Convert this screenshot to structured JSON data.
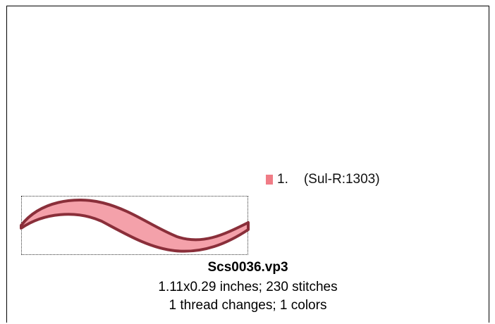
{
  "legend": {
    "items": [
      {
        "number": "1.",
        "thread": "(Sul-R:1303)",
        "color": "#f07c86"
      }
    ]
  },
  "design": {
    "fill_color": "#f4a1aa",
    "edge_color": "#8a2f3a",
    "filename": "Scs0036.vp3",
    "dimensions_line": "1.11x0.29 inches; 230 stitches",
    "changes_line": "1 thread changes; 1 colors"
  }
}
